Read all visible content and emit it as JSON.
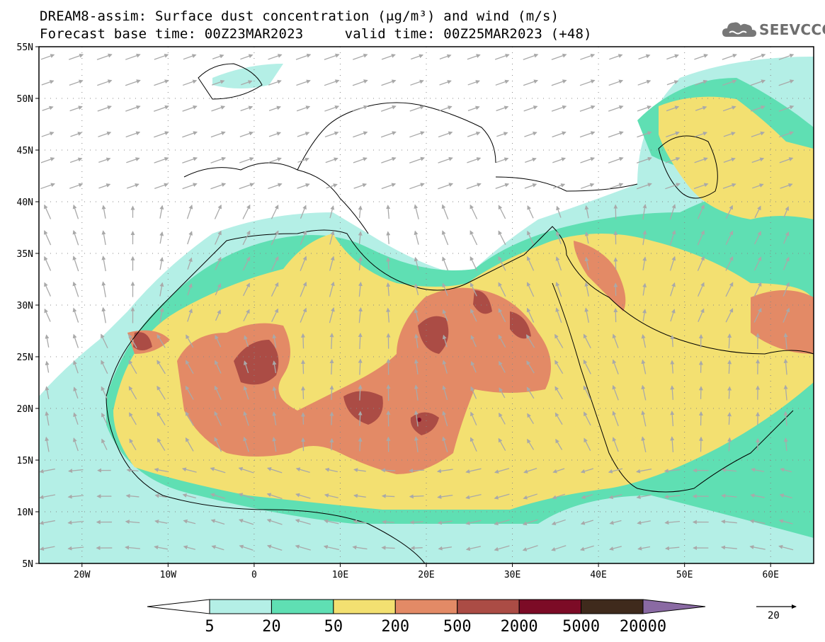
{
  "title_line1": "DREAM8-assim: Surface dust concentration (μg/m³) and wind (m/s)",
  "title_line2": "Forecast base time: 00Z23MAR2023     valid time: 00Z25MAR2023 (+48)",
  "logo_text": "SEEVCCC",
  "map": {
    "lon_ticks": [
      "20W",
      "10W",
      "0",
      "10E",
      "20E",
      "30E",
      "40E",
      "50E",
      "60E"
    ],
    "lat_ticks": [
      "55N",
      "50N",
      "45N",
      "40N",
      "35N",
      "30N",
      "25N",
      "20N",
      "15N",
      "10N",
      "5N"
    ],
    "lon_range": [
      -25,
      65
    ],
    "lat_range": [
      5,
      55
    ]
  },
  "colorbar": {
    "labels": [
      "5",
      "20",
      "50",
      "200",
      "500",
      "2000",
      "5000",
      "20000"
    ],
    "colors": [
      "#b4efe6",
      "#5fdfb3",
      "#f3e071",
      "#e38a66",
      "#ab4c45",
      "#7c0b26",
      "#3f2a1c"
    ],
    "over_color": "#8a6aa3",
    "under_color": "#ffffff"
  },
  "wind_reference": {
    "label": "20"
  },
  "colors": {
    "dust_light": "#b4efe6",
    "dust_mid": "#5fdfb3",
    "dust_yellow": "#f3e071",
    "dust_orange": "#e38a66",
    "dust_brown": "#ab4c45",
    "dust_maroon": "#7c0b26",
    "wind_arrow": "#a9a9a9"
  }
}
